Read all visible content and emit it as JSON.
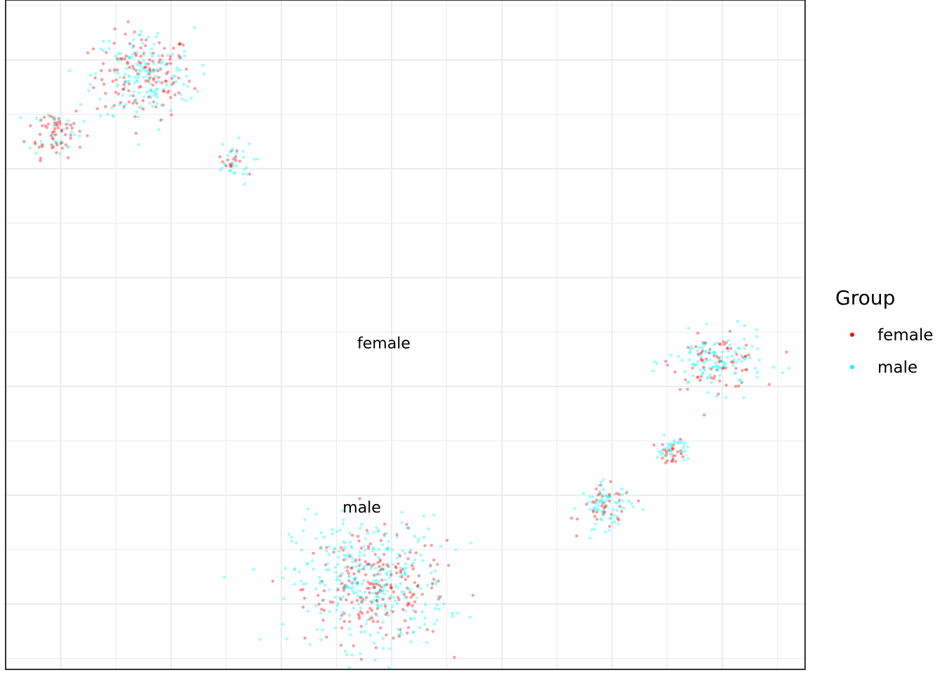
{
  "chart_data": {
    "type": "scatter",
    "title": "",
    "xlabel": "",
    "ylabel": "",
    "xlim": [
      -3.5,
      3.75
    ],
    "ylim": [
      -2.6,
      3.55
    ],
    "grid": true,
    "legend": {
      "title": "Group",
      "position": "right",
      "entries": [
        {
          "label": "female",
          "color": "#FF0000"
        },
        {
          "label": "male",
          "color": "#00FFFF"
        }
      ]
    },
    "annotations": [
      {
        "text": "female",
        "x": -0.07,
        "y": 0.35
      },
      {
        "text": "male",
        "x": -0.27,
        "y": -1.16
      }
    ],
    "series": [
      {
        "name": "female",
        "color": "#FF0000",
        "clusters": [
          {
            "center": [
              -2.25,
              2.85
            ],
            "spread": [
              0.22,
              0.2
            ],
            "count": 130
          },
          {
            "center": [
              -3.05,
              2.35
            ],
            "spread": [
              0.13,
              0.12
            ],
            "count": 60
          },
          {
            "center": [
              -1.45,
              2.05
            ],
            "spread": [
              0.06,
              0.05
            ],
            "count": 15
          },
          {
            "center": [
              -0.15,
              -1.85
            ],
            "spread": [
              0.32,
              0.25
            ],
            "count": 210
          },
          {
            "center": [
              1.95,
              -1.12
            ],
            "spread": [
              0.12,
              0.1
            ],
            "count": 40
          },
          {
            "center": [
              2.55,
              -0.6
            ],
            "spread": [
              0.06,
              0.06
            ],
            "count": 25
          },
          {
            "center": [
              2.95,
              0.22
            ],
            "spread": [
              0.2,
              0.12
            ],
            "count": 70
          }
        ]
      },
      {
        "name": "male",
        "color": "#00FFFF",
        "clusters": [
          {
            "center": [
              -2.25,
              2.85
            ],
            "spread": [
              0.23,
              0.22
            ],
            "count": 160
          },
          {
            "center": [
              -3.05,
              2.35
            ],
            "spread": [
              0.12,
              0.11
            ],
            "count": 30
          },
          {
            "center": [
              -1.45,
              2.05
            ],
            "spread": [
              0.1,
              0.1
            ],
            "count": 30
          },
          {
            "center": [
              -0.2,
              -1.8
            ],
            "spread": [
              0.35,
              0.3
            ],
            "count": 330
          },
          {
            "center": [
              1.95,
              -1.1
            ],
            "spread": [
              0.12,
              0.1
            ],
            "count": 70
          },
          {
            "center": [
              2.55,
              -0.58
            ],
            "spread": [
              0.07,
              0.06
            ],
            "count": 35
          },
          {
            "center": [
              2.95,
              0.22
            ],
            "spread": [
              0.22,
              0.13
            ],
            "count": 120
          }
        ]
      }
    ]
  }
}
